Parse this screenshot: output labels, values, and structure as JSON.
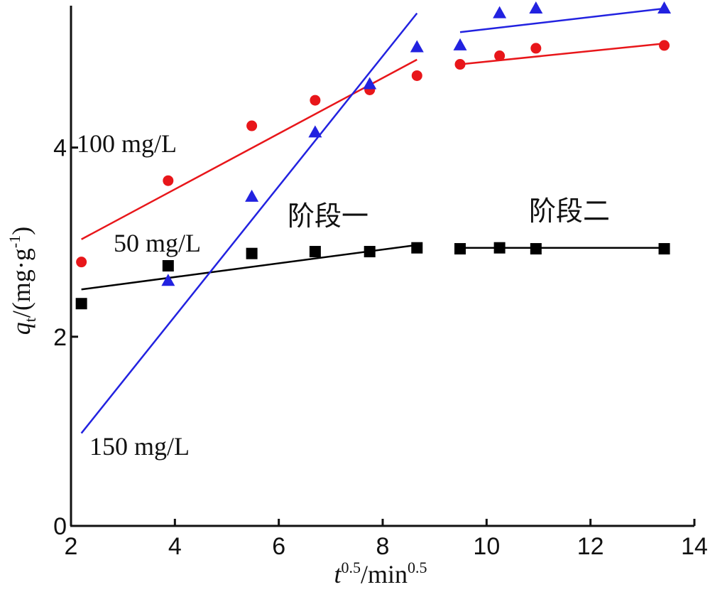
{
  "chart_data": {
    "type": "scatter",
    "title": "",
    "xlabel_parts": {
      "base": "t",
      "sup": "0.5",
      "unit": "/min",
      "unit_sup": "0.5"
    },
    "ylabel_parts": {
      "var": "q",
      "sub": "t",
      "unit": "/(mg·g",
      "unit_sup": "-1",
      "close": ")"
    },
    "xlim": [
      2,
      14
    ],
    "ylim": [
      0,
      5.5
    ],
    "xticks": [
      2,
      4,
      6,
      8,
      10,
      12,
      14
    ],
    "yticks": [
      0,
      2,
      4
    ],
    "grid": false,
    "series": [
      {
        "label": "50 mg/L",
        "color": "#000000",
        "marker": "square",
        "points": [
          [
            2.2,
            2.35
          ],
          [
            3.87,
            2.75
          ],
          [
            5.48,
            2.88
          ],
          [
            6.7,
            2.9
          ],
          [
            7.75,
            2.9
          ],
          [
            8.66,
            2.94
          ],
          [
            9.49,
            2.93
          ],
          [
            10.25,
            2.94
          ],
          [
            10.95,
            2.93
          ],
          [
            13.42,
            2.93
          ]
        ],
        "fits": [
          {
            "x": [
              2.2,
              8.66
            ],
            "y": [
              2.5,
              2.97
            ]
          },
          {
            "x": [
              9.49,
              13.42
            ],
            "y": [
              2.94,
              2.94
            ]
          }
        ]
      },
      {
        "label": "100 mg/L",
        "color": "#e8161a",
        "marker": "circle",
        "points": [
          [
            2.2,
            2.79
          ],
          [
            3.87,
            3.65
          ],
          [
            5.48,
            4.23
          ],
          [
            6.7,
            4.5
          ],
          [
            7.75,
            4.61
          ],
          [
            8.66,
            4.76
          ],
          [
            9.49,
            4.88
          ],
          [
            10.25,
            4.97
          ],
          [
            10.95,
            5.05
          ],
          [
            13.42,
            5.08
          ]
        ],
        "fits": [
          {
            "x": [
              2.2,
              8.66
            ],
            "y": [
              3.03,
              4.93
            ]
          },
          {
            "x": [
              9.49,
              13.42
            ],
            "y": [
              4.88,
              5.1
            ]
          }
        ]
      },
      {
        "label": "150 mg/L",
        "color": "#2222e0",
        "marker": "triangle",
        "points": [
          [
            3.87,
            2.59
          ],
          [
            5.48,
            3.48
          ],
          [
            6.7,
            4.16
          ],
          [
            7.75,
            4.67
          ],
          [
            8.66,
            5.06
          ],
          [
            9.49,
            5.08
          ],
          [
            10.25,
            5.42
          ],
          [
            10.95,
            5.47
          ],
          [
            13.42,
            5.47
          ]
        ],
        "fits": [
          {
            "x": [
              2.2,
              8.66
            ],
            "y": [
              0.98,
              5.42
            ]
          },
          {
            "x": [
              9.49,
              13.42
            ],
            "y": [
              5.22,
              5.47
            ]
          }
        ]
      }
    ],
    "annotations": {
      "stage1": "阶段一",
      "stage2": "阶段二"
    }
  }
}
